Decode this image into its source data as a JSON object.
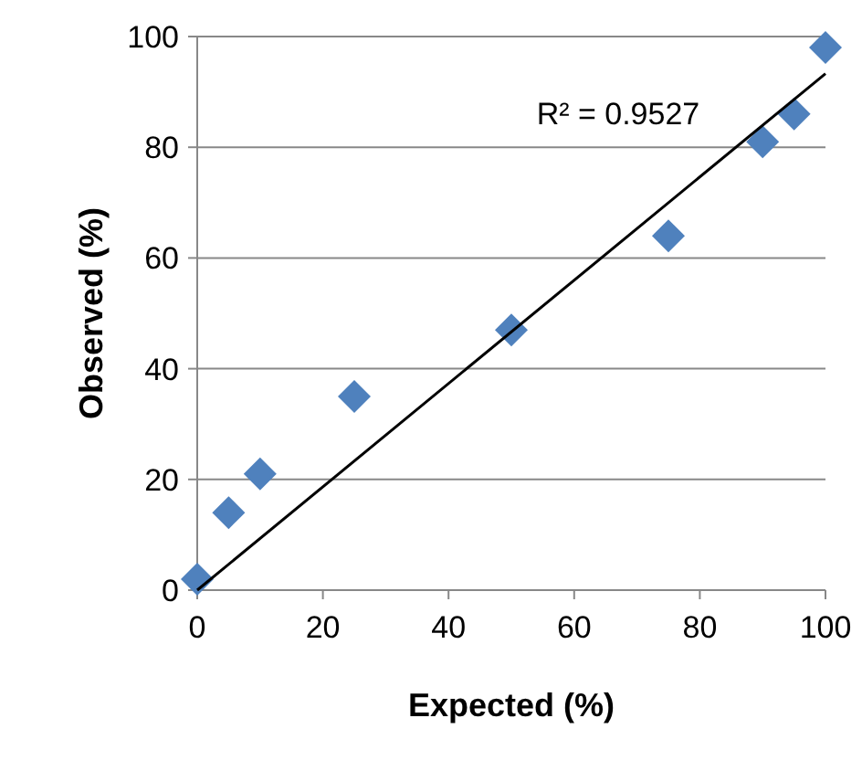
{
  "chart_data": {
    "type": "scatter",
    "xlabel": "Expected (%)",
    "ylabel": "Observed (%)",
    "xlim": [
      0,
      100
    ],
    "ylim": [
      0,
      100
    ],
    "xticks": [
      0,
      20,
      40,
      60,
      80,
      100
    ],
    "yticks": [
      0,
      20,
      40,
      60,
      80,
      100
    ],
    "grid": "y",
    "series": [
      {
        "marker": "diamond",
        "color": "#4f81bd",
        "x": [
          0,
          5,
          10,
          25,
          50,
          75,
          90,
          95,
          100
        ],
        "values": [
          2,
          14,
          21,
          35,
          47,
          64,
          81,
          86,
          98
        ]
      },
      {
        "type": "line",
        "color": "#000000",
        "x": [
          0,
          100
        ],
        "values": [
          0,
          93.3
        ],
        "line_style": "solid"
      }
    ],
    "annotations": [
      "R² = 0.9527"
    ]
  }
}
